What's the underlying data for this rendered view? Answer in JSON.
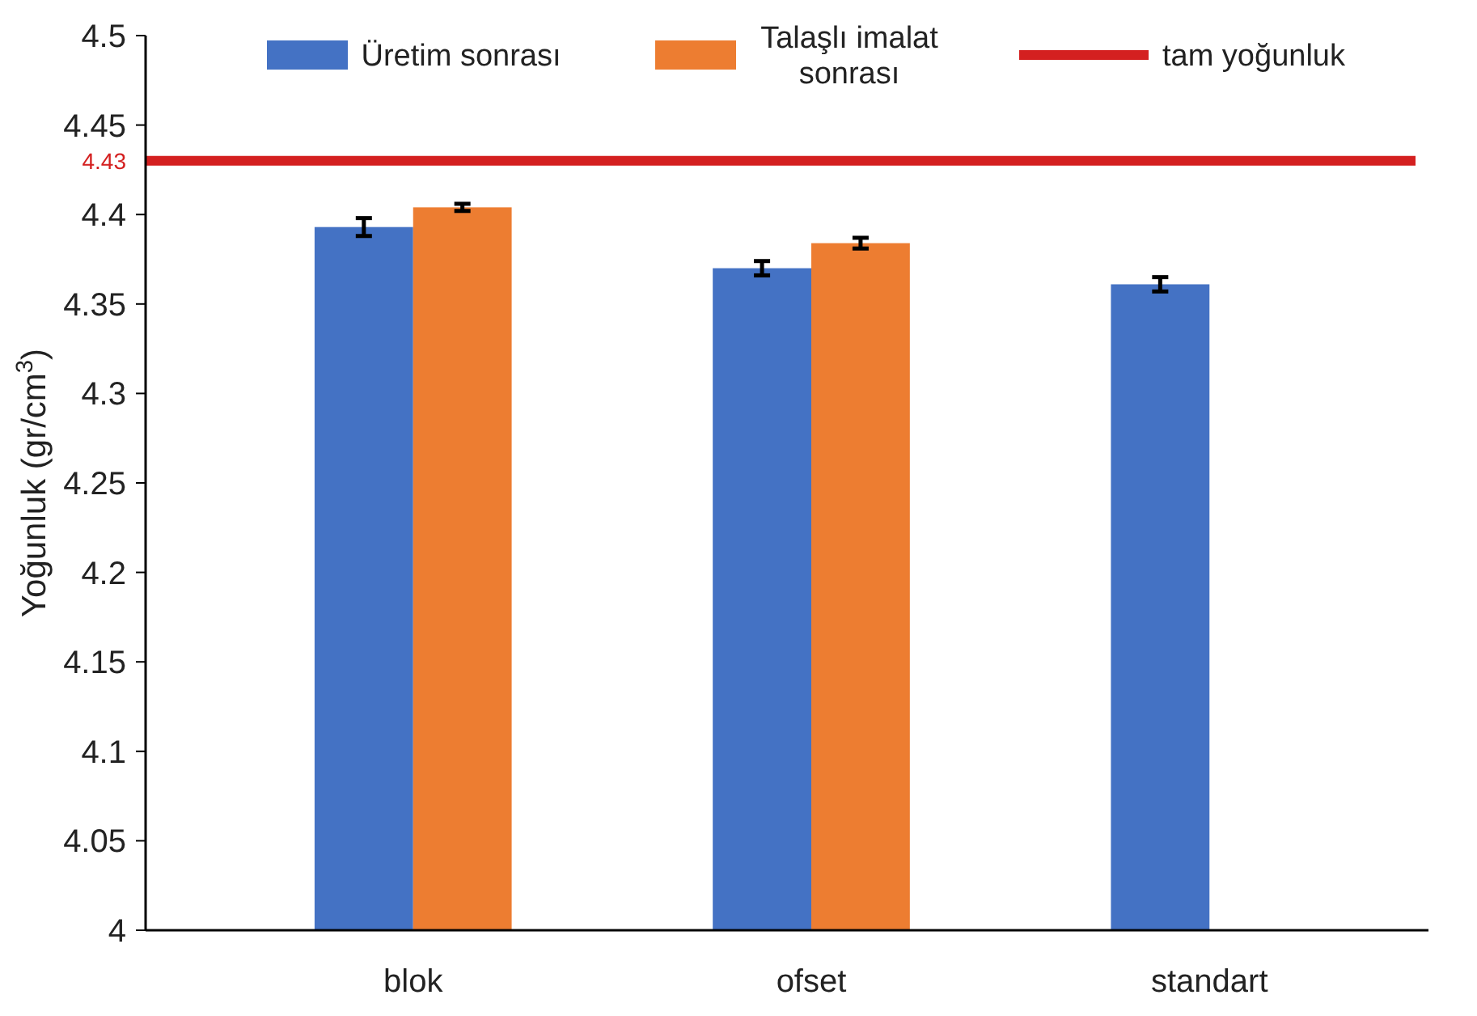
{
  "chart_data": {
    "type": "bar",
    "ylabel": "Yoğunluk (gr/cm$^{3}$)",
    "categories": [
      "blok",
      "ofset",
      "standart"
    ],
    "series": [
      {
        "name": "Üretim sonrası",
        "color": "#4472c4",
        "values": [
          4.393,
          4.37,
          4.361
        ],
        "errors": [
          0.005,
          0.004,
          0.004
        ]
      },
      {
        "name": "Talaşlı imalat sonrası",
        "color": "#ed7d31",
        "values": [
          4.404,
          4.384,
          null
        ],
        "errors": [
          0.002,
          0.003,
          null
        ]
      }
    ],
    "ylim": [
      4,
      4.5
    ],
    "yticks": [
      4,
      4.05,
      4.1,
      4.15,
      4.2,
      4.25,
      4.3,
      4.35,
      4.4,
      4.45,
      4.5
    ],
    "ref_lines": [
      {
        "axis": "y",
        "value": 4.43,
        "label": "tam yoğunluk",
        "color": "#d42020"
      }
    ],
    "annotations": [
      "4.43"
    ],
    "grid": false,
    "legend": "top"
  }
}
